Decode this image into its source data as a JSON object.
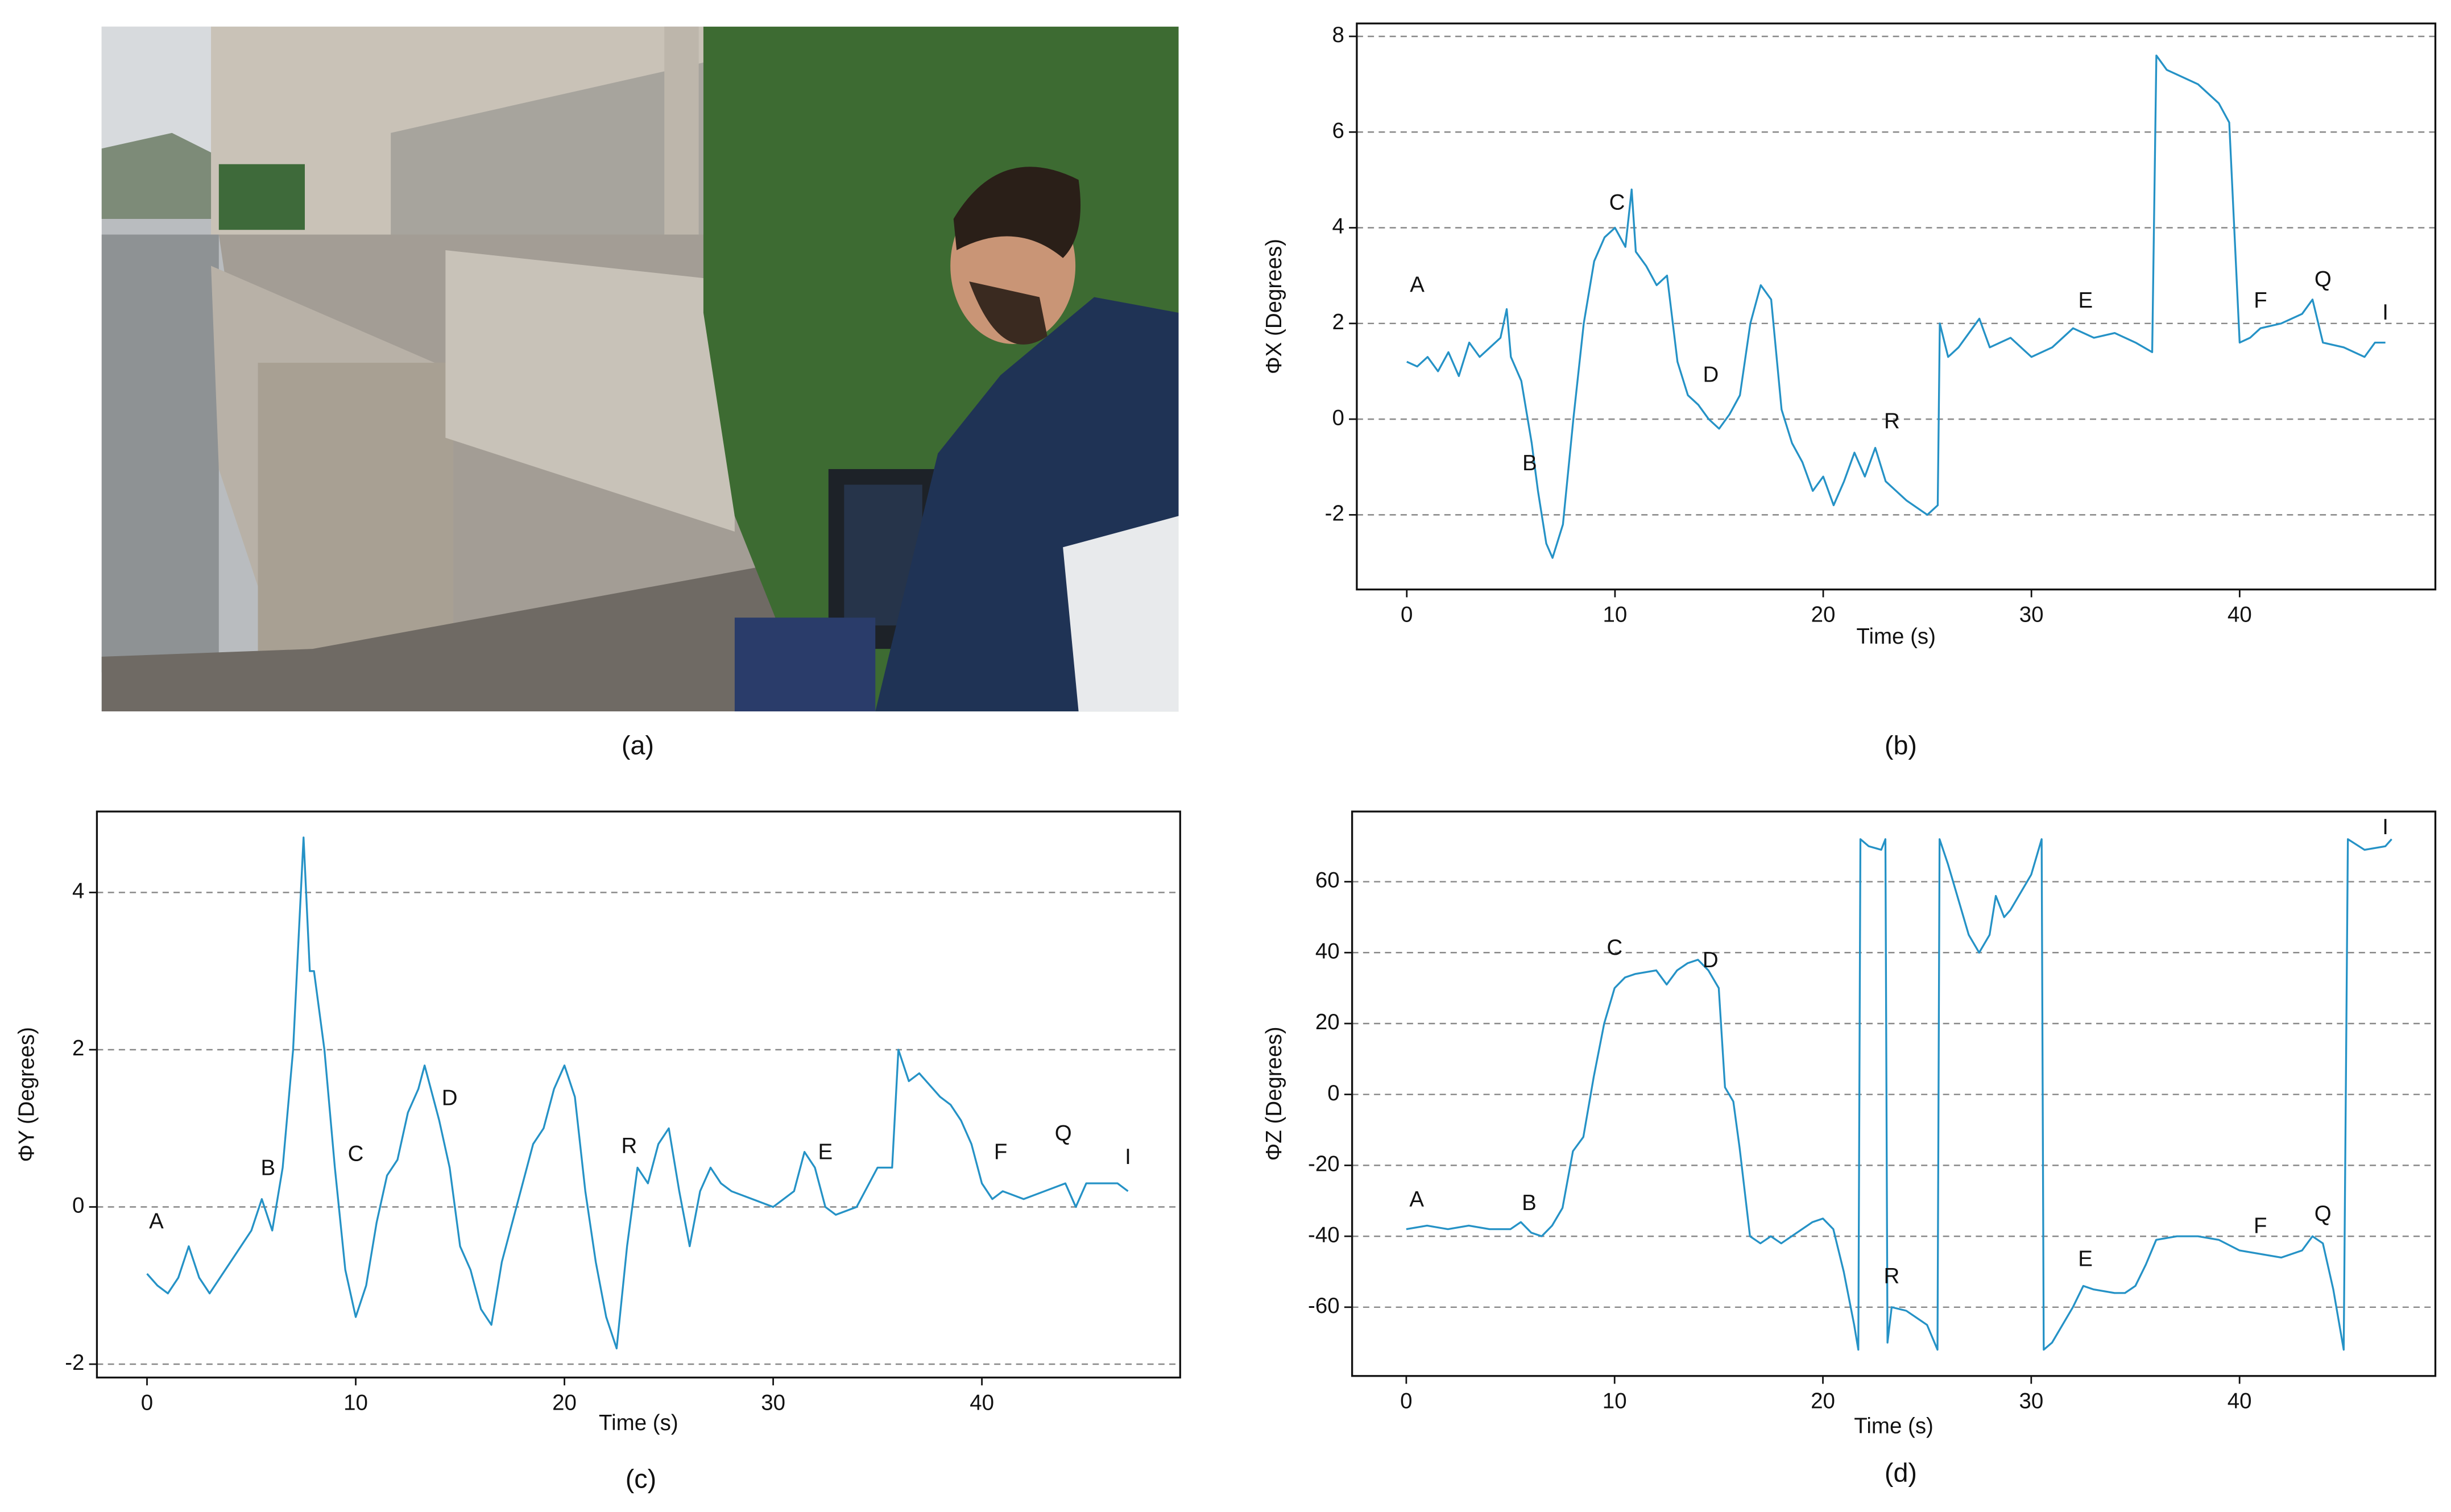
{
  "photo": {
    "caption": "(a)"
  },
  "chart_data": [
    {
      "type": "line",
      "caption": "(b)",
      "xlabel": "Time (s)",
      "ylabel": "ΦX (Degrees)",
      "color": "#2592c6",
      "xlim": [
        -2.4,
        49.4
      ],
      "ylim": [
        -3.56,
        8.27
      ],
      "xticks": [
        0,
        10,
        20,
        30,
        40
      ],
      "yticks": [
        -2,
        0,
        2,
        4,
        6,
        8
      ],
      "grid": true,
      "x": [
        0,
        0.5,
        1,
        1.5,
        2,
        2.5,
        3,
        3.5,
        4,
        4.5,
        4.8,
        5,
        5.5,
        6,
        6.3,
        6.7,
        7,
        7.5,
        8,
        8.5,
        9,
        9.5,
        10,
        10.5,
        10.8,
        11,
        11.5,
        12,
        12.5,
        13,
        13.5,
        14,
        14.5,
        15,
        15.5,
        16,
        16.5,
        17,
        17.5,
        18,
        18.5,
        19,
        19.5,
        20,
        20.5,
        21,
        21.5,
        22,
        22.5,
        23,
        23.5,
        24,
        25,
        25.5,
        25.6,
        26,
        26.5,
        27,
        27.5,
        28,
        29,
        30,
        31,
        32,
        33,
        34,
        35,
        35.8,
        36,
        36.5,
        37,
        38,
        39,
        39.5,
        40,
        40.5,
        41,
        42,
        43,
        43.5,
        44,
        45,
        46,
        46.5,
        47
      ],
      "values": [
        1.2,
        1.1,
        1.3,
        1.0,
        1.4,
        0.9,
        1.6,
        1.3,
        1.5,
        1.7,
        2.3,
        1.3,
        0.8,
        -0.5,
        -1.5,
        -2.6,
        -2.9,
        -2.2,
        0.0,
        2.0,
        3.3,
        3.8,
        4.0,
        3.6,
        4.8,
        3.5,
        3.2,
        2.8,
        3.0,
        1.2,
        0.5,
        0.3,
        0.0,
        -0.2,
        0.1,
        0.5,
        2.0,
        2.8,
        2.5,
        0.2,
        -0.5,
        -0.9,
        -1.5,
        -1.2,
        -1.8,
        -1.3,
        -0.7,
        -1.2,
        -0.6,
        -1.3,
        -1.5,
        -1.7,
        -2.0,
        -1.8,
        2.0,
        1.3,
        1.5,
        1.8,
        2.1,
        1.5,
        1.7,
        1.3,
        1.5,
        1.9,
        1.7,
        1.8,
        1.6,
        1.4,
        7.6,
        7.3,
        7.2,
        7.0,
        6.6,
        6.2,
        1.6,
        1.7,
        1.9,
        2.0,
        2.2,
        2.5,
        1.6,
        1.5,
        1.3,
        1.6,
        1.6
      ],
      "annotations": [
        {
          "text": "A",
          "x": 0.5,
          "y": 2.78
        },
        {
          "text": "B",
          "x": 5.9,
          "y": -0.95
        },
        {
          "text": "C",
          "x": 10.1,
          "y": 4.5
        },
        {
          "text": "D",
          "x": 14.6,
          "y": 0.9
        },
        {
          "text": "R",
          "x": 23.3,
          "y": -0.07
        },
        {
          "text": "E",
          "x": 32.6,
          "y": 2.45
        },
        {
          "text": "F",
          "x": 41,
          "y": 2.45
        },
        {
          "text": "Q",
          "x": 44,
          "y": 2.9
        },
        {
          "text": "I",
          "x": 47,
          "y": 2.2
        }
      ]
    },
    {
      "type": "line",
      "caption": "(c)",
      "xlabel": "Time (s)",
      "ylabel": "ΦY (Degrees)",
      "color": "#2592c6",
      "xlim": [
        -2.4,
        49.5
      ],
      "ylim": [
        -2.17,
        5.03
      ],
      "xticks": [
        0,
        10,
        20,
        30,
        40
      ],
      "yticks": [
        -2,
        0,
        2,
        4
      ],
      "grid": true,
      "x": [
        0,
        0.5,
        1,
        1.5,
        2,
        2.5,
        3,
        3.5,
        4,
        4.5,
        5,
        5.5,
        6,
        6.5,
        7,
        7.5,
        7.8,
        8,
        8.5,
        9,
        9.5,
        10,
        10.5,
        11,
        11.5,
        12,
        12.5,
        13,
        13.3,
        14,
        14.5,
        15,
        15.5,
        16,
        16.5,
        17,
        17.5,
        18,
        18.5,
        19,
        19.5,
        20,
        20.5,
        21,
        21.5,
        22,
        22.5,
        23,
        23.5,
        24,
        24.5,
        25,
        25.5,
        26,
        26.5,
        27,
        27.5,
        28,
        29,
        30,
        31,
        31.5,
        32,
        32.5,
        33,
        34,
        35,
        35.7,
        36,
        36.5,
        37,
        38,
        38.5,
        39,
        39.5,
        40,
        40.5,
        41,
        42,
        43,
        44,
        44.5,
        45,
        46,
        46.5,
        47
      ],
      "values": [
        -0.85,
        -1.0,
        -1.1,
        -0.9,
        -0.5,
        -0.9,
        -1.1,
        -0.9,
        -0.7,
        -0.5,
        -0.3,
        0.1,
        -0.3,
        0.5,
        2.0,
        4.7,
        3.0,
        3.0,
        2.0,
        0.5,
        -0.8,
        -1.4,
        -1.0,
        -0.2,
        0.4,
        0.6,
        1.2,
        1.5,
        1.8,
        1.1,
        0.5,
        -0.5,
        -0.8,
        -1.3,
        -1.5,
        -0.7,
        -0.2,
        0.3,
        0.8,
        1.0,
        1.5,
        1.8,
        1.4,
        0.2,
        -0.7,
        -1.4,
        -1.8,
        -0.5,
        0.5,
        0.3,
        0.8,
        1.0,
        0.2,
        -0.5,
        0.2,
        0.5,
        0.3,
        0.2,
        0.1,
        0.0,
        0.2,
        0.7,
        0.5,
        0.0,
        -0.1,
        0.0,
        0.5,
        0.5,
        2.0,
        1.6,
        1.7,
        1.4,
        1.3,
        1.1,
        0.8,
        0.3,
        0.1,
        0.2,
        0.1,
        0.2,
        0.3,
        0.0,
        0.3,
        0.3,
        0.3,
        0.2
      ],
      "annotations": [
        {
          "text": "A",
          "x": 0.45,
          "y": -0.2
        },
        {
          "text": "B",
          "x": 5.8,
          "y": 0.48
        },
        {
          "text": "C",
          "x": 10,
          "y": 0.66
        },
        {
          "text": "D",
          "x": 14.5,
          "y": 1.37
        },
        {
          "text": "R",
          "x": 23.1,
          "y": 0.76
        },
        {
          "text": "E",
          "x": 32.5,
          "y": 0.68
        },
        {
          "text": "F",
          "x": 40.9,
          "y": 0.68
        },
        {
          "text": "Q",
          "x": 43.9,
          "y": 0.92
        },
        {
          "text": "I",
          "x": 47,
          "y": 0.62
        }
      ]
    },
    {
      "type": "line",
      "caption": "(d)",
      "xlabel": "Time (s)",
      "ylabel": "ΦZ (Degrees)",
      "color": "#2592c6",
      "xlim": [
        -2.6,
        49.4
      ],
      "ylim": [
        -79.4,
        79.8
      ],
      "xticks": [
        0,
        10,
        20,
        30,
        40
      ],
      "yticks": [
        -60,
        -40,
        -20,
        0,
        20,
        40,
        60
      ],
      "grid": true,
      "x": [
        0,
        1,
        2,
        3,
        4,
        5,
        5.5,
        6,
        6.5,
        7,
        7.5,
        8,
        8.5,
        9,
        9.5,
        10,
        10.5,
        11,
        12,
        12.5,
        13,
        13.5,
        14,
        14.5,
        15,
        15.3,
        15.7,
        16,
        16.5,
        17,
        17.5,
        18,
        19,
        19.5,
        20,
        20.5,
        21,
        21.5,
        21.7,
        21.8,
        22.2,
        22.8,
        23,
        23.1,
        23.3,
        24,
        24.5,
        25,
        25.5,
        25.6,
        26,
        27,
        27.5,
        28,
        28.3,
        28.7,
        29,
        30,
        30.5,
        30.6,
        31,
        32,
        32.5,
        33,
        34,
        34.5,
        35,
        35.5,
        36,
        37,
        38,
        39,
        40,
        41,
        42,
        43,
        43.5,
        44,
        44.5,
        45,
        45.2,
        46,
        47,
        47.3
      ],
      "values": [
        -38,
        -37,
        -38,
        -37,
        -38,
        -38,
        -36,
        -39,
        -40,
        -37,
        -32,
        -16,
        -12,
        5,
        20,
        30,
        33,
        34,
        35,
        31,
        35,
        37,
        38,
        35,
        30,
        2,
        -2,
        -15,
        -40,
        -42,
        -40,
        -42,
        -38,
        -36,
        -35,
        -38,
        -50,
        -65,
        -72,
        72,
        70,
        69,
        72,
        -70,
        -60,
        -61,
        -63,
        -65,
        -72,
        72,
        65,
        45,
        40,
        45,
        56,
        50,
        52,
        62,
        72,
        -72,
        -70,
        -60,
        -54,
        -55,
        -56,
        -56,
        -54,
        -48,
        -41,
        -40,
        -40,
        -41,
        -44,
        -45,
        -46,
        -44,
        -40,
        -42,
        -55,
        -72,
        72,
        69,
        70,
        72
      ],
      "annotations": [
        {
          "text": "A",
          "x": 0.5,
          "y": -30
        },
        {
          "text": "B",
          "x": 5.9,
          "y": -31
        },
        {
          "text": "C",
          "x": 10,
          "y": 41
        },
        {
          "text": "D",
          "x": 14.6,
          "y": 37.5
        },
        {
          "text": "R",
          "x": 23.3,
          "y": -51.6
        },
        {
          "text": "E",
          "x": 32.6,
          "y": -46.8
        },
        {
          "text": "F",
          "x": 41,
          "y": -37.5
        },
        {
          "text": "Q",
          "x": 44,
          "y": -34
        },
        {
          "text": "I",
          "x": 47,
          "y": 75
        }
      ]
    }
  ]
}
